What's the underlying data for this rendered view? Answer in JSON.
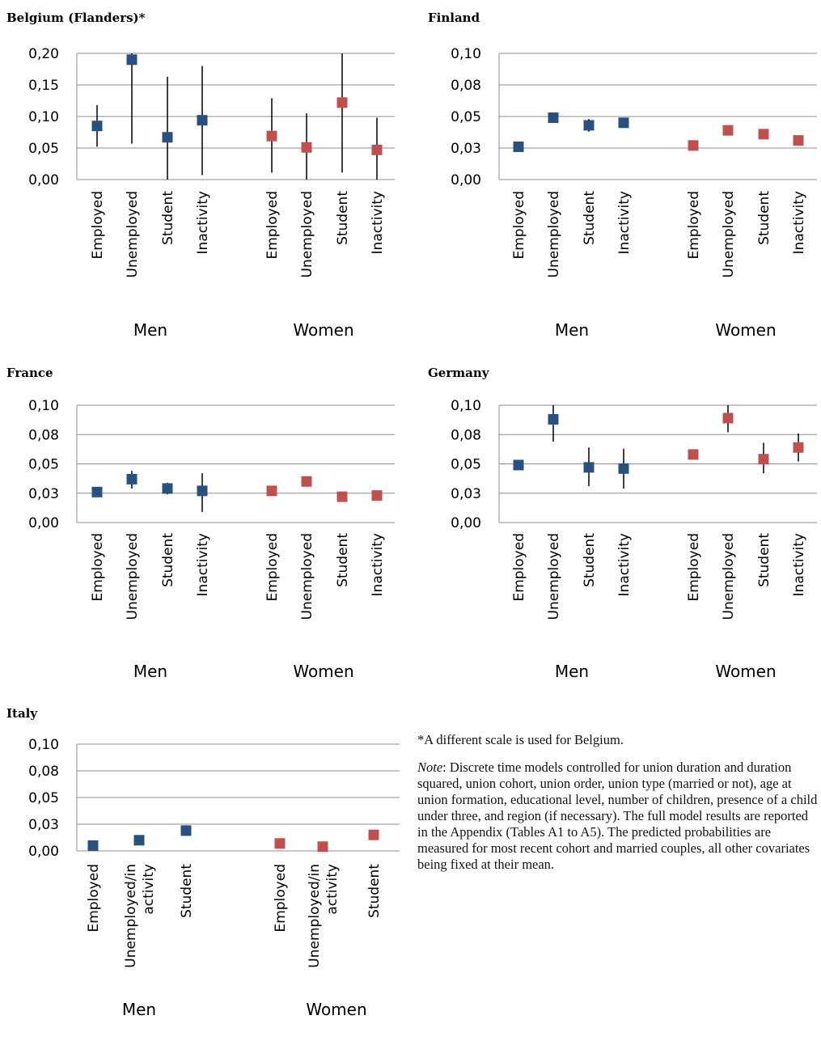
{
  "colors": {
    "men": "#2a5080",
    "women": "#c0504d",
    "grid": "#8c8c8c",
    "error": "#000000"
  },
  "chart_data": [
    {
      "type": "scatter",
      "title": "Belgium (Flanders)*",
      "ylim": [
        0,
        0.2
      ],
      "yticks": [
        "0,00",
        "0,05",
        "0,10",
        "0,15",
        "0,20"
      ],
      "grid": true,
      "categories": [
        "Employed",
        "Unemployed",
        "Student",
        "Inactivity",
        "Employed",
        "Unemployed",
        "Student",
        "Inactivity"
      ],
      "groups": [
        "Men",
        "Women"
      ],
      "series": [
        {
          "name": "Men",
          "color": "#2a5080",
          "values": [
            0.085,
            0.19,
            0.067,
            0.094
          ],
          "err_low": [
            0.052,
            0.057,
            0.0,
            0.007
          ],
          "err_high": [
            0.118,
            0.2,
            0.163,
            0.18
          ]
        },
        {
          "name": "Women",
          "color": "#c0504d",
          "values": [
            0.069,
            0.051,
            0.122,
            0.047
          ],
          "err_low": [
            0.011,
            0.0,
            0.011,
            0.0
          ],
          "err_high": [
            0.129,
            0.105,
            0.2,
            0.098
          ]
        }
      ]
    },
    {
      "type": "scatter",
      "title": "Finland",
      "ylim": [
        0,
        0.1
      ],
      "yticks": [
        "0,00",
        "0,03",
        "0,05",
        "0,08",
        "0,10"
      ],
      "grid": true,
      "categories": [
        "Employed",
        "Unemployed",
        "Student",
        "Inactivity",
        "Employed",
        "Unemployed",
        "Student",
        "Inactivity"
      ],
      "groups": [
        "Men",
        "Women"
      ],
      "series": [
        {
          "name": "Men",
          "color": "#2a5080",
          "values": [
            0.026,
            0.049,
            0.043,
            0.045
          ],
          "err_low": [
            0.026,
            0.049,
            0.038,
            0.045
          ],
          "err_high": [
            0.026,
            0.049,
            0.048,
            0.045
          ]
        },
        {
          "name": "Women",
          "color": "#c0504d",
          "values": [
            0.027,
            0.039,
            0.036,
            0.031
          ],
          "err_low": [
            0.027,
            0.039,
            0.036,
            0.031
          ],
          "err_high": [
            0.027,
            0.039,
            0.036,
            0.031
          ]
        }
      ]
    },
    {
      "type": "scatter",
      "title": "France",
      "ylim": [
        0,
        0.1
      ],
      "yticks": [
        "0,00",
        "0,03",
        "0,05",
        "0,08",
        "0,10"
      ],
      "grid": true,
      "categories": [
        "Employed",
        "Unemployed",
        "Student",
        "Inactivity",
        "Employed",
        "Unemployed",
        "Student",
        "Inactivity"
      ],
      "groups": [
        "Men",
        "Women"
      ],
      "series": [
        {
          "name": "Men",
          "color": "#2a5080",
          "values": [
            0.026,
            0.037,
            0.029,
            0.027
          ],
          "err_low": [
            0.026,
            0.029,
            0.024,
            0.009
          ],
          "err_high": [
            0.026,
            0.044,
            0.034,
            0.042
          ]
        },
        {
          "name": "Women",
          "color": "#c0504d",
          "values": [
            0.027,
            0.035,
            0.022,
            0.023
          ],
          "err_low": [
            0.027,
            0.031,
            0.022,
            0.023
          ],
          "err_high": [
            0.027,
            0.039,
            0.022,
            0.023
          ]
        }
      ]
    },
    {
      "type": "scatter",
      "title": "Germany",
      "ylim": [
        0,
        0.1
      ],
      "yticks": [
        "0,00",
        "0,03",
        "0,05",
        "0,08",
        "0,10"
      ],
      "grid": true,
      "categories": [
        "Employed",
        "Unemployed",
        "Student",
        "Inactivity",
        "Employed",
        "Unemployed",
        "Student",
        "Inactivity"
      ],
      "groups": [
        "Men",
        "Women"
      ],
      "series": [
        {
          "name": "Men",
          "color": "#2a5080",
          "values": [
            0.049,
            0.088,
            0.047,
            0.046
          ],
          "err_low": [
            0.049,
            0.069,
            0.031,
            0.029
          ],
          "err_high": [
            0.049,
            0.1,
            0.064,
            0.063
          ]
        },
        {
          "name": "Women",
          "color": "#c0504d",
          "values": [
            0.058,
            0.089,
            0.054,
            0.064
          ],
          "err_low": [
            0.054,
            0.077,
            0.042,
            0.052
          ],
          "err_high": [
            0.062,
            0.1,
            0.068,
            0.076
          ]
        }
      ]
    },
    {
      "type": "scatter",
      "title": "Italy",
      "ylim": [
        0,
        0.1
      ],
      "yticks": [
        "0,00",
        "0,03",
        "0,05",
        "0,08",
        "0,10"
      ],
      "grid": true,
      "categories": [
        "Employed",
        "Unemployed/in activity",
        "Student",
        "Employed",
        "Unemployed/in activity",
        "Student"
      ],
      "category_lines": [
        [
          "Employed"
        ],
        [
          "Unemployed/in",
          "activity"
        ],
        [
          "Student"
        ],
        [
          "Employed"
        ],
        [
          "Unemployed/in",
          "activity"
        ],
        [
          "Student"
        ]
      ],
      "groups": [
        "Men",
        "Women"
      ],
      "series": [
        {
          "name": "Men",
          "color": "#2a5080",
          "values": [
            0.005,
            0.01,
            0.019
          ],
          "err_low": [
            0.005,
            0.01,
            0.014
          ],
          "err_high": [
            0.005,
            0.01,
            0.024
          ]
        },
        {
          "name": "Women",
          "color": "#c0504d",
          "values": [
            0.007,
            0.004,
            0.015
          ],
          "err_low": [
            0.007,
            0.004,
            0.015
          ],
          "err_high": [
            0.007,
            0.004,
            0.015
          ]
        }
      ]
    }
  ],
  "notes": {
    "scale_note": "*A different scale is used for Belgium.",
    "note_label": "Note",
    "note_text": ": Discrete time models controlled for union duration and duration squared, union cohort, union order, union type (married or not), age at union formation, educational level, number of children, presence of a child under three, and region (if necessary). The full model results are reported in the Appendix (Tables A1 to A5). The predicted probabilities are measured for most recent cohort and married couples, all other covariates being fixed at their mean."
  }
}
